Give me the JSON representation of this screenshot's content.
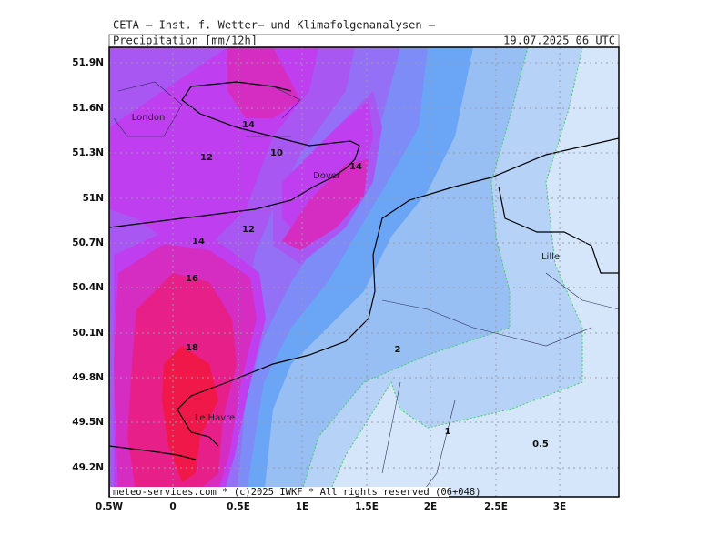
{
  "header": {
    "title": "CETA — Inst. f. Wetter— und Klimafolgenanalysen —",
    "variable": "Precipitation [mm/12h]",
    "valid_time": "19.07.2025 06 UTC"
  },
  "map": {
    "lat_labels": [
      "51.9N",
      "51.6N",
      "51.3N",
      "51N",
      "50.7N",
      "50.4N",
      "50.1N",
      "49.8N",
      "49.5N",
      "49.2N"
    ],
    "lon_labels": [
      "0.5W",
      "0",
      "0.5E",
      "1E",
      "1.5E",
      "2E",
      "2.5E",
      "3E"
    ],
    "contour_labels": [
      "14",
      "10",
      "12",
      "14",
      "12",
      "14",
      "16",
      "18",
      "2",
      "1",
      "0.5"
    ],
    "places": [
      "London",
      "Dover",
      "Lille",
      "Le Havre"
    ]
  },
  "footer": "meteo-services.com * (c)2025 IWKF * All rights reserved (06+048)"
}
